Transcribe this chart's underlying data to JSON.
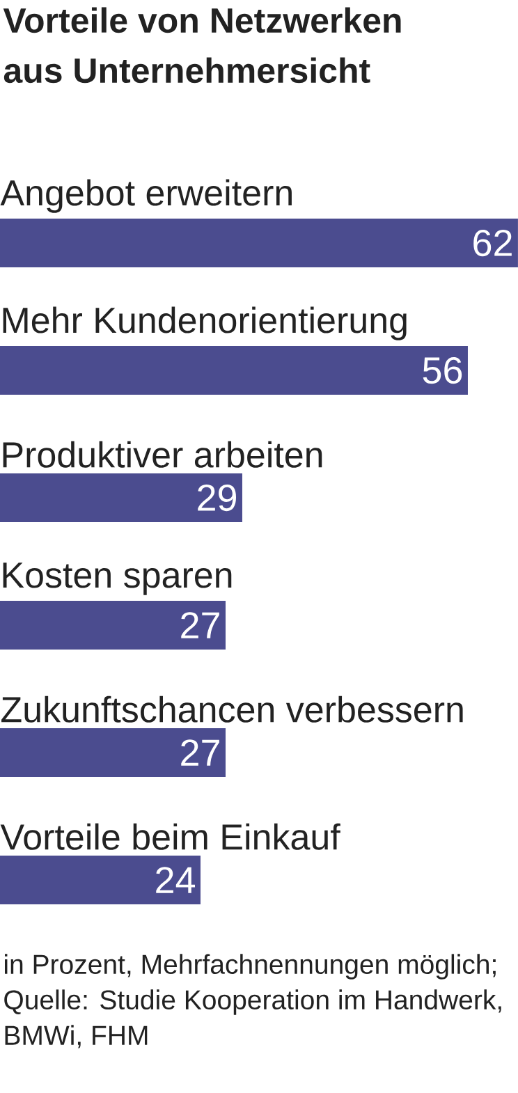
{
  "chart_data": {
    "type": "bar",
    "orientation": "horizontal",
    "title": "Vorteile von Netzwerken aus Unternehmersicht",
    "categories": [
      "Angebot erweitern",
      "Mehr Kundenorientierung",
      "Produktiver arbeiten",
      "Kosten sparen",
      "Zukunftschancen verbessern",
      "Vorteile beim Einkauf"
    ],
    "values": [
      62,
      56,
      29,
      27,
      27,
      24
    ],
    "color": "#4b4c8f",
    "data_labels": true,
    "annotations": [
      "in Prozent, Mehrfachnennungen möglich; Quelle: Studie Kooperation im Handwerk, BMWi, FHM"
    ]
  }
}
